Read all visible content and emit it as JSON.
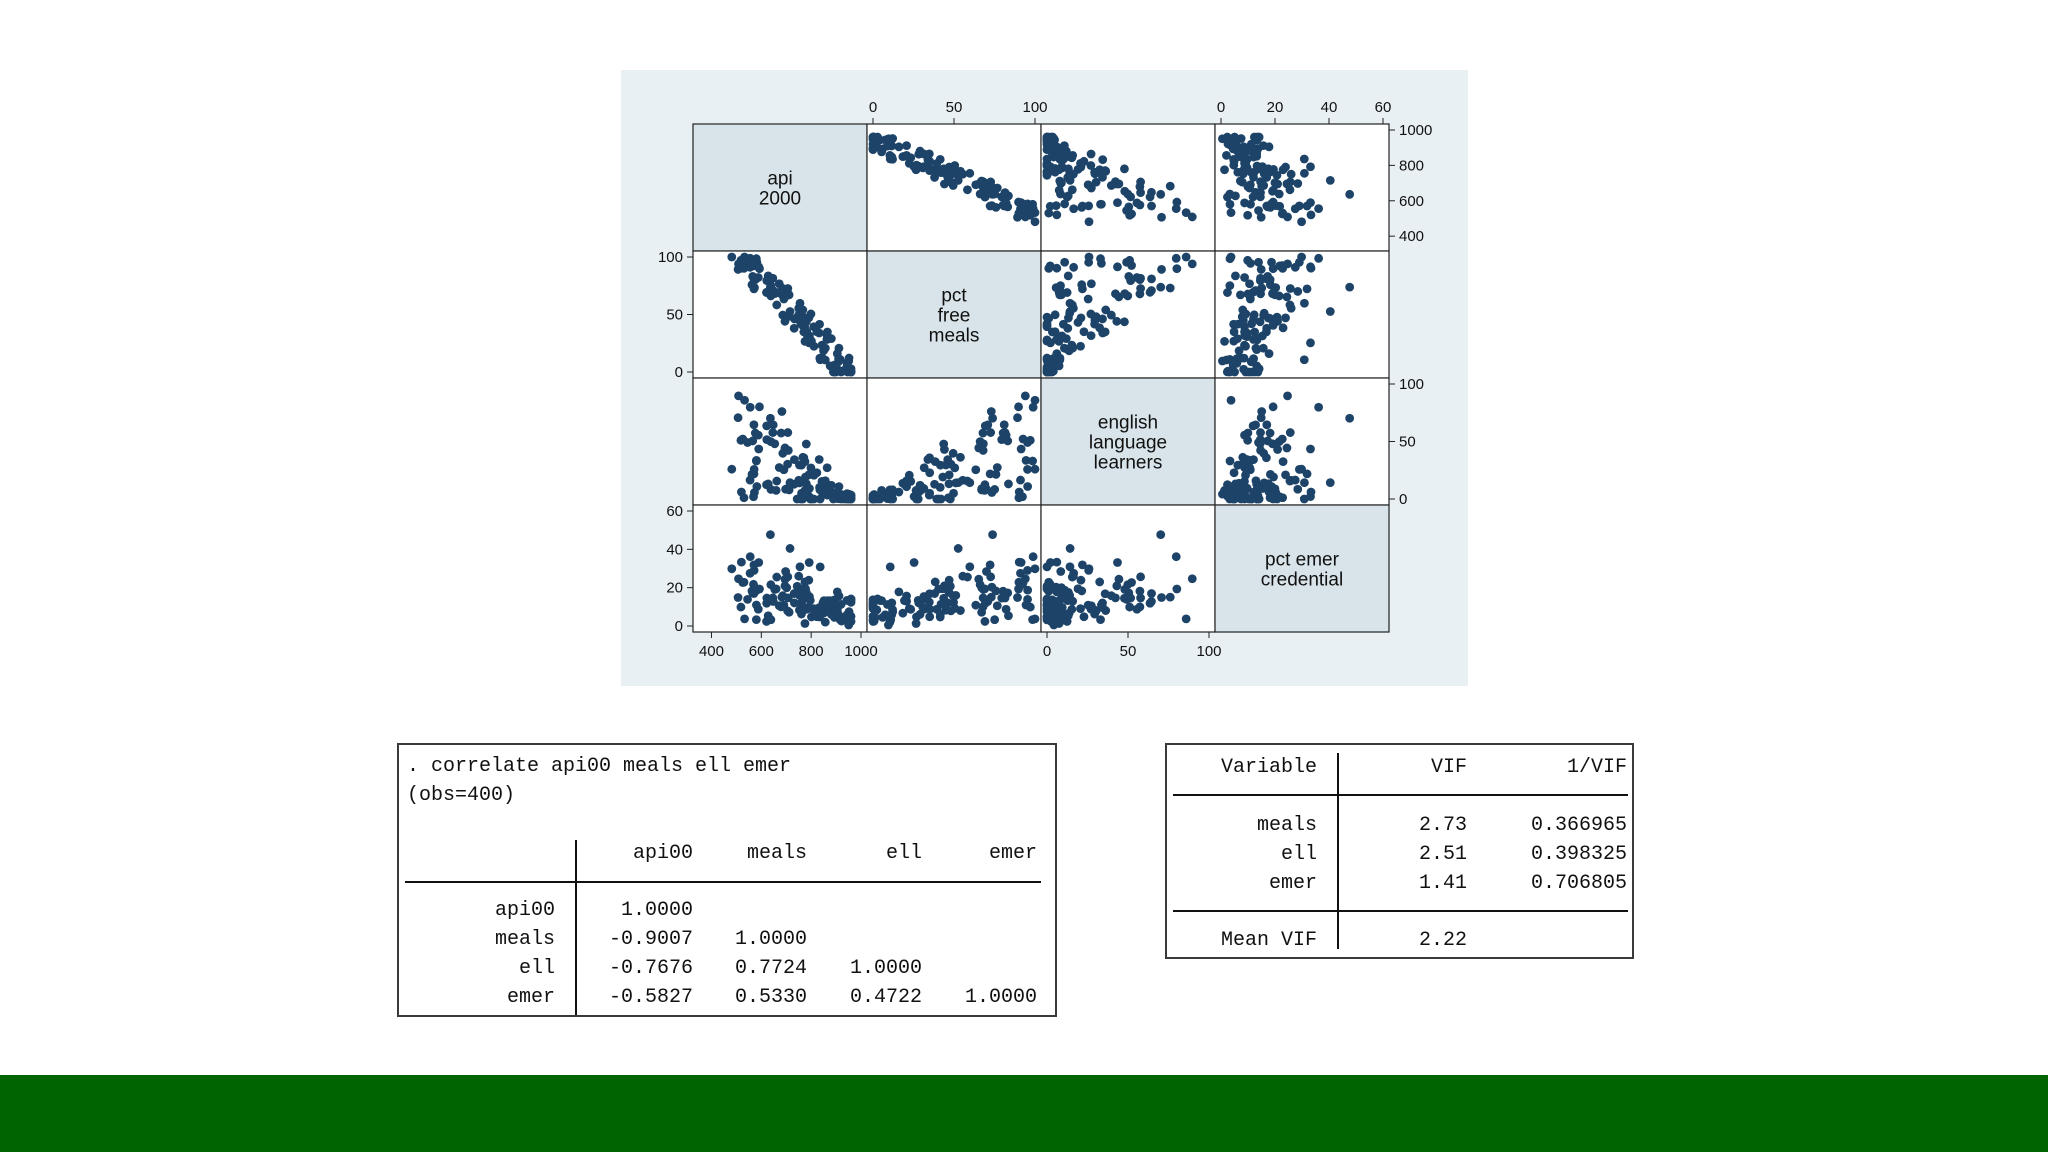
{
  "colors": {
    "marker": "#1d4468",
    "panel_bg": "#e8f0f3",
    "diag_bg": "#d8e4ea",
    "footer": "#006400"
  },
  "chart_data": {
    "type": "scatter",
    "subtype": "scatter-matrix",
    "variables": [
      {
        "key": "api00",
        "label_lines": [
          "api",
          "2000"
        ],
        "range": [
          350,
          1000
        ],
        "ticks": [
          "400",
          "600",
          "800",
          "1000"
        ],
        "tick_values": [
          400,
          600,
          800,
          1000
        ]
      },
      {
        "key": "meals",
        "label_lines": [
          "pct",
          "free",
          "meals"
        ],
        "range": [
          0,
          100
        ],
        "ticks": [
          "0",
          "50",
          "100"
        ],
        "tick_values": [
          0,
          50,
          100
        ]
      },
      {
        "key": "ell",
        "label_lines": [
          "english",
          "language",
          "learners"
        ],
        "range": [
          0,
          100
        ],
        "ticks": [
          "0",
          "50",
          "100"
        ],
        "tick_values": [
          0,
          50,
          100
        ]
      },
      {
        "key": "emer",
        "label_lines": [
          "pct emer",
          "credential"
        ],
        "range": [
          0,
          60
        ],
        "ticks": [
          "0",
          "20",
          "40",
          "60"
        ],
        "tick_values": [
          0,
          20,
          40,
          60
        ]
      }
    ],
    "axes": {
      "top": [
        1,
        3
      ],
      "right": [
        0,
        2
      ],
      "left": [
        1,
        3
      ],
      "bottom": [
        0,
        2
      ]
    },
    "n_points": 120,
    "sample_points": [
      {
        "api00": 940,
        "meals": 5,
        "ell": 2,
        "emer": 3
      },
      {
        "api00": 900,
        "meals": 12,
        "ell": 6,
        "emer": 8
      },
      {
        "api00": 870,
        "meals": 15,
        "ell": 10,
        "emer": 12
      },
      {
        "api00": 850,
        "meals": 20,
        "ell": 8,
        "emer": 5
      },
      {
        "api00": 830,
        "meals": 25,
        "ell": 15,
        "emer": 18
      },
      {
        "api00": 810,
        "meals": 28,
        "ell": 12,
        "emer": 10
      },
      {
        "api00": 790,
        "meals": 32,
        "ell": 20,
        "emer": 22
      },
      {
        "api00": 770,
        "meals": 35,
        "ell": 18,
        "emer": 15
      },
      {
        "api00": 750,
        "meals": 40,
        "ell": 25,
        "emer": 25
      },
      {
        "api00": 730,
        "meals": 45,
        "ell": 28,
        "emer": 20
      },
      {
        "api00": 710,
        "meals": 50,
        "ell": 30,
        "emer": 30
      },
      {
        "api00": 690,
        "meals": 55,
        "ell": 35,
        "emer": 28
      },
      {
        "api00": 670,
        "meals": 60,
        "ell": 40,
        "emer": 18
      },
      {
        "api00": 650,
        "meals": 65,
        "ell": 45,
        "emer": 35
      },
      {
        "api00": 630,
        "meals": 70,
        "ell": 50,
        "emer": 25
      },
      {
        "api00": 610,
        "meals": 75,
        "ell": 55,
        "emer": 40
      },
      {
        "api00": 590,
        "meals": 80,
        "ell": 60,
        "emer": 30
      },
      {
        "api00": 570,
        "meals": 85,
        "ell": 65,
        "emer": 45
      },
      {
        "api00": 550,
        "meals": 88,
        "ell": 70,
        "emer": 35
      },
      {
        "api00": 530,
        "meals": 92,
        "ell": 75,
        "emer": 50
      },
      {
        "api00": 500,
        "meals": 95,
        "ell": 80,
        "emer": 20
      },
      {
        "api00": 470,
        "meals": 98,
        "ell": 85,
        "emer": 28
      },
      {
        "api00": 440,
        "meals": 100,
        "ell": 90,
        "emer": 15
      },
      {
        "api00": 420,
        "meals": 99,
        "ell": 92,
        "emer": 10
      }
    ]
  },
  "correlate": {
    "command": ". correlate api00 meals ell emer",
    "obs": "(obs=400)",
    "columns": [
      "api00",
      "meals",
      "ell",
      "emer"
    ],
    "rows": [
      {
        "name": "api00",
        "values": [
          "1.0000",
          "",
          "",
          ""
        ]
      },
      {
        "name": "meals",
        "values": [
          "-0.9007",
          "1.0000",
          "",
          ""
        ]
      },
      {
        "name": "ell",
        "values": [
          "-0.7676",
          "0.7724",
          "1.0000",
          ""
        ]
      },
      {
        "name": "emer",
        "values": [
          "-0.5827",
          "0.5330",
          "0.4722",
          "1.0000"
        ]
      }
    ]
  },
  "vif": {
    "headers": [
      "Variable",
      "VIF",
      "1/VIF"
    ],
    "rows": [
      {
        "name": "meals",
        "vif": "2.73",
        "inv": "0.366965"
      },
      {
        "name": "ell",
        "vif": "2.51",
        "inv": "0.398325"
      },
      {
        "name": "emer",
        "vif": "1.41",
        "inv": "0.706805"
      }
    ],
    "mean_label": "Mean VIF",
    "mean_value": "2.22"
  }
}
